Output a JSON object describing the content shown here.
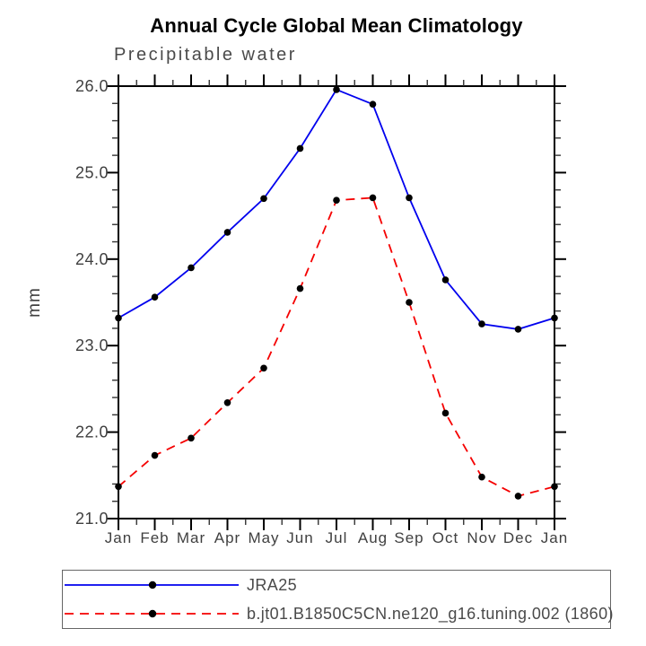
{
  "chart_data": {
    "type": "line",
    "title": "Annual Cycle Global Mean Climatology",
    "subtitle": "Precipitable water",
    "xlabel": "",
    "ylabel": "mm",
    "categories": [
      "Jan",
      "Feb",
      "Mar",
      "Apr",
      "May",
      "Jun",
      "Jul",
      "Aug",
      "Sep",
      "Oct",
      "Nov",
      "Dec",
      "Jan"
    ],
    "ylim": [
      21.0,
      26.0
    ],
    "y_major_step": 1.0,
    "y_minor_step": 0.2,
    "y_tick_labels": [
      "21.0",
      "22.0",
      "23.0",
      "24.0",
      "25.0",
      "26.0"
    ],
    "grid": false,
    "legend_position": "bottom-left",
    "series": [
      {
        "name": "JRA25",
        "color": "#0000ee",
        "style": "solid",
        "marker": "circle",
        "marker_color": "#000000",
        "values": [
          23.32,
          23.56,
          23.9,
          24.31,
          24.7,
          25.28,
          25.96,
          25.79,
          24.71,
          23.76,
          23.25,
          23.19,
          23.32
        ]
      },
      {
        "name": "b.jt01.B1850C5CN.ne120_g16.tuning.002 (1860)",
        "color": "#f50000",
        "style": "dashed",
        "marker": "circle",
        "marker_color": "#000000",
        "values": [
          21.37,
          21.73,
          21.93,
          22.34,
          22.74,
          23.66,
          24.68,
          24.71,
          23.5,
          22.22,
          21.48,
          21.26,
          21.37
        ]
      }
    ],
    "axis_color": "#000000",
    "text_color": "#3f3f3f"
  }
}
